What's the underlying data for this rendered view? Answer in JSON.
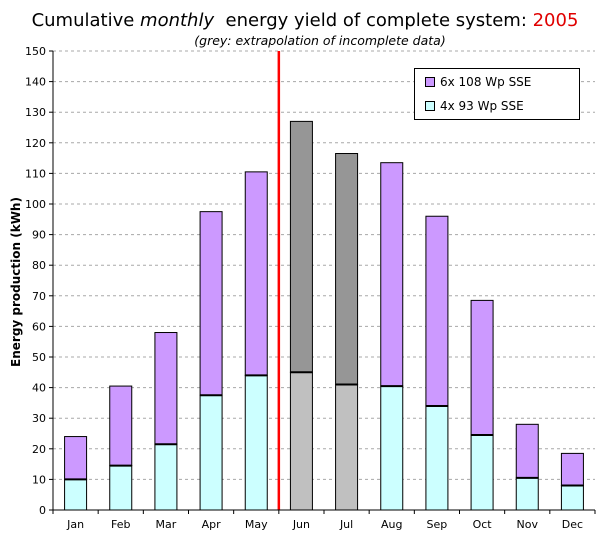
{
  "title": {
    "prefix": "Cumulative ",
    "emphasis": "monthly",
    "suffix": "  energy yield of complete system: ",
    "year": "2005",
    "year_color": "#e00000"
  },
  "subtitle": "(grey: extrapolation of incomplete data)",
  "chart_data": {
    "type": "bar",
    "stacked": true,
    "title": "Cumulative monthly energy yield of complete system: 2005",
    "subtitle": "(grey: extrapolation of incomplete data)",
    "xlabel": "",
    "ylabel": "Energy production (kWh)",
    "ylim": [
      0,
      150
    ],
    "yticks": [
      0,
      10,
      20,
      30,
      40,
      50,
      60,
      70,
      80,
      90,
      100,
      110,
      120,
      130,
      140,
      150
    ],
    "grid": "horizontal dashed",
    "legend_position": "top-right",
    "categories": [
      "Jan",
      "Feb",
      "Mar",
      "Apr",
      "May",
      "Jun",
      "Jul",
      "Aug",
      "Sep",
      "Oct",
      "Nov",
      "Dec"
    ],
    "series": [
      {
        "name": "4x 93 Wp SSE",
        "color": "#ccffff",
        "values": [
          10,
          14.5,
          21.5,
          37.5,
          44,
          45,
          41,
          40.5,
          34,
          24.5,
          10.5,
          8
        ]
      },
      {
        "name": "6x 108 Wp SSE",
        "color": "#cc99ff",
        "values": [
          14,
          26,
          36.5,
          60,
          66.5,
          82,
          75.5,
          73,
          62,
          44,
          17.5,
          10.5
        ]
      }
    ],
    "extrapolated_categories": [
      "Jun",
      "Jul"
    ],
    "extrapolated_colors": {
      "4x 93 Wp SSE": "#c0c0c0",
      "6x 108 Wp SSE": "#969696"
    },
    "marker_line": {
      "between": [
        "May",
        "Jun"
      ],
      "color": "#ff0000"
    }
  }
}
